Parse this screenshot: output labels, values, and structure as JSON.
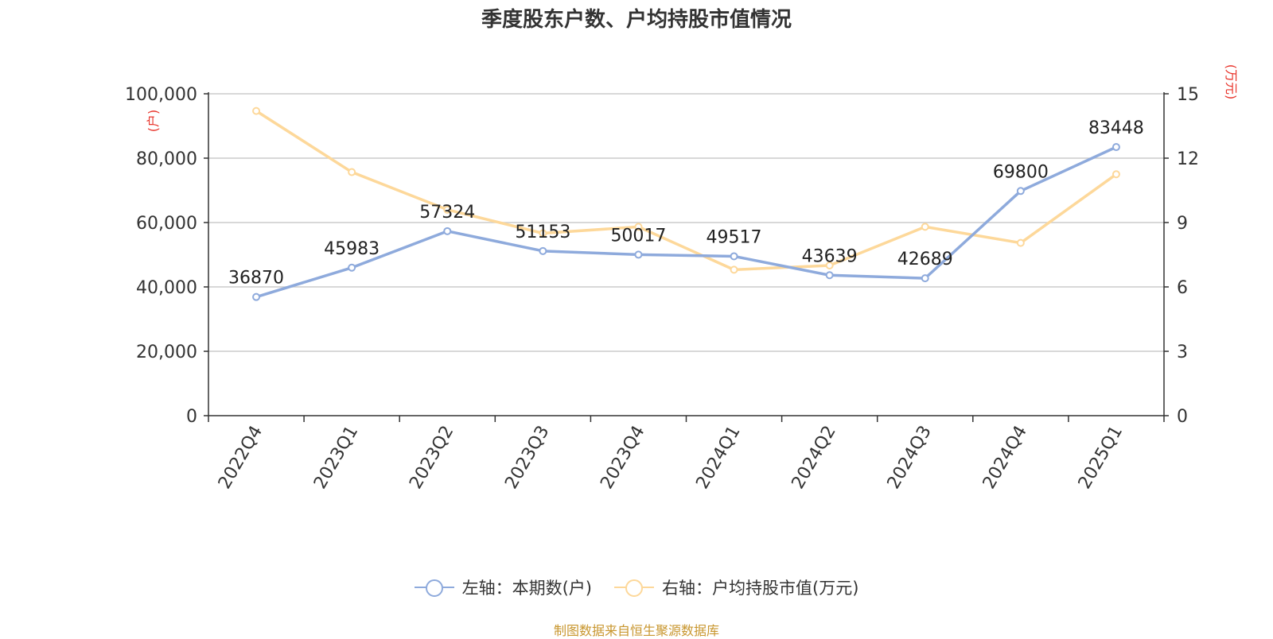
{
  "chart_data": {
    "type": "line",
    "title": "季度股东户数、户均持股市值情况",
    "categories": [
      "2022Q4",
      "2023Q1",
      "2023Q2",
      "2023Q3",
      "2023Q4",
      "2024Q1",
      "2024Q2",
      "2024Q3",
      "2024Q4",
      "2025Q1"
    ],
    "left_axis": {
      "unit_label": "(户)",
      "range": [
        0,
        100000
      ],
      "ticks": [
        "0",
        "20,000",
        "40,000",
        "60,000",
        "80,000",
        "100,000"
      ]
    },
    "right_axis": {
      "unit_label": "(万元)",
      "range": [
        0,
        15
      ],
      "ticks": [
        "0",
        "3",
        "6",
        "9",
        "12",
        "15"
      ]
    },
    "series": [
      {
        "name": "左轴：本期数(户)",
        "axis": "left",
        "color": "#8eaadc",
        "values": [
          36870,
          45983,
          57324,
          51153,
          50017,
          49517,
          43639,
          42689,
          69800,
          83448
        ],
        "labels": [
          "36870",
          "45983",
          "57324",
          "51153",
          "50017",
          "49517",
          "43639",
          "42689",
          "69800",
          "83448"
        ]
      },
      {
        "name": "右轴：户均持股市值(万元)",
        "axis": "right",
        "color": "#fdd89a",
        "values": [
          14.2,
          11.35,
          9.6,
          8.5,
          8.8,
          6.8,
          7.0,
          8.8,
          8.05,
          11.25
        ]
      }
    ],
    "grid": true,
    "legend_position": "bottom-center",
    "unit_label_color": "#e8332a",
    "source": "制图数据来自恒生聚源数据库",
    "source_color": "#c8962e"
  }
}
